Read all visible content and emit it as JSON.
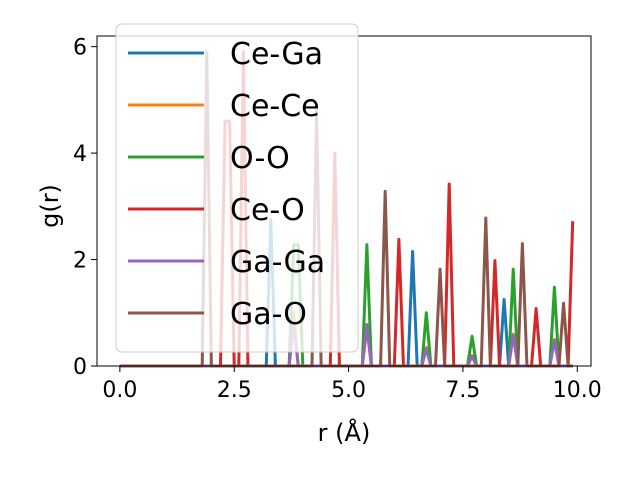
{
  "chart_data": {
    "type": "line",
    "title": "",
    "xlabel": "r (Å)",
    "ylabel": "g(r)",
    "xlim": [
      -0.5,
      10.3
    ],
    "ylim": [
      0,
      6.2
    ],
    "xticks": [
      0.0,
      2.5,
      5.0,
      7.5,
      10.0
    ],
    "xtick_labels": [
      "0.0",
      "2.5",
      "5.0",
      "7.5",
      "10.0"
    ],
    "yticks": [
      0,
      2,
      4,
      6
    ],
    "ytick_labels": [
      "0",
      "2",
      "4",
      "6"
    ],
    "grid": false,
    "legend_position": "upper-left",
    "series": [
      {
        "name": "Ce-Ga",
        "color": "#1f77b4",
        "peaks": [
          [
            3.32,
            2.75
          ],
          [
            6.38,
            2.15
          ],
          [
            8.42,
            1.25
          ]
        ]
      },
      {
        "name": "Ce-Ce",
        "color": "#ff7f0e",
        "peaks": [
          [
            3.82,
            1.0
          ],
          [
            5.42,
            0.7
          ],
          [
            6.72,
            0.35
          ],
          [
            7.72,
            0.2
          ],
          [
            8.62,
            0.6
          ],
          [
            9.52,
            0.5
          ]
        ]
      },
      {
        "name": "O-O",
        "color": "#2ca02c",
        "peaks": [
          [
            3.85,
            2.28
          ],
          [
            5.4,
            2.28
          ],
          [
            6.72,
            1.0
          ],
          [
            7.72,
            0.56
          ],
          [
            8.62,
            1.82
          ],
          [
            9.52,
            1.48
          ]
        ]
      },
      {
        "name": "Ce-O",
        "color": "#d62728",
        "peaks": [
          [
            2.35,
            4.6
          ],
          [
            2.7,
            5.9
          ],
          [
            4.68,
            4.0
          ],
          [
            6.08,
            2.38
          ],
          [
            7.18,
            3.42
          ],
          [
            8.2,
            1.98
          ],
          [
            9.1,
            1.08
          ],
          [
            9.88,
            2.72
          ]
        ]
      },
      {
        "name": "Ga-Ga",
        "color": "#9467bd",
        "peaks": [
          [
            3.82,
            0.78
          ],
          [
            5.42,
            0.78
          ],
          [
            6.72,
            0.32
          ],
          [
            7.72,
            0.18
          ],
          [
            8.62,
            0.58
          ],
          [
            9.52,
            0.48
          ]
        ]
      },
      {
        "name": "Ga-O",
        "color": "#8c564b",
        "peaks": [
          [
            1.9,
            5.9
          ],
          [
            4.3,
            4.8
          ],
          [
            5.82,
            3.28
          ],
          [
            6.98,
            1.82
          ],
          [
            8.0,
            2.78
          ],
          [
            8.82,
            2.3
          ],
          [
            9.72,
            1.18
          ]
        ]
      }
    ]
  }
}
